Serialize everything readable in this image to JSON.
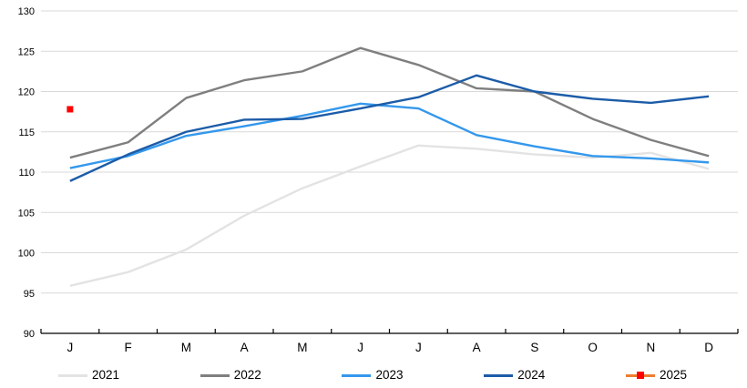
{
  "chart_data": {
    "type": "line",
    "title": "",
    "x_categories": [
      "J",
      "F",
      "M",
      "A",
      "M",
      "J",
      "J",
      "A",
      "S",
      "O",
      "N",
      "D"
    ],
    "ylim": [
      90,
      130
    ],
    "ytick_step": 5,
    "y_tick_labels": [
      "90",
      "95",
      "100",
      "105",
      "110",
      "115",
      "120",
      "125",
      "130"
    ],
    "grid": "horizontal",
    "legend_position": "bottom",
    "series": [
      {
        "name": "2021",
        "color": "#E3E3E3",
        "values": [
          95.9,
          97.6,
          100.4,
          104.6,
          108.0,
          110.7,
          113.3,
          112.9,
          112.2,
          111.8,
          112.4,
          110.4
        ]
      },
      {
        "name": "2022",
        "color": "#7F7F7F",
        "values": [
          111.8,
          113.7,
          119.2,
          121.4,
          122.5,
          125.4,
          123.3,
          120.4,
          120.0,
          116.6,
          114.0,
          112.0
        ]
      },
      {
        "name": "2023",
        "color": "#3498EC",
        "values": [
          110.5,
          112.0,
          114.5,
          115.7,
          117.0,
          118.5,
          117.9,
          114.6,
          113.2,
          112.0,
          111.7,
          111.2
        ]
      },
      {
        "name": "2024",
        "color": "#1C5CA8",
        "values": [
          108.9,
          112.2,
          115.0,
          116.5,
          116.6,
          117.9,
          119.3,
          122.0,
          120.0,
          119.1,
          118.6,
          119.4
        ]
      },
      {
        "name": "2025",
        "color": "#ED7D31",
        "marker": "square",
        "marker_color": "#FE0000",
        "values": [
          117.8,
          null,
          null,
          null,
          null,
          null,
          null,
          null,
          null,
          null,
          null,
          null
        ]
      }
    ]
  },
  "colors": {
    "gridline": "#D9D9D9",
    "axis": "#000000",
    "text": "#000000",
    "background": "#FFFFFF"
  }
}
